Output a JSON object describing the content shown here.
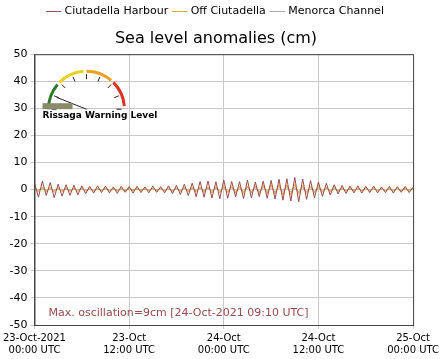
{
  "chart_data": {
    "type": "line",
    "title": "Sea level anomalies (cm)",
    "legend": "top",
    "grid": true,
    "x": [
      0,
      0.5,
      1,
      1.5,
      2,
      2.5,
      3,
      3.5,
      4,
      4.5,
      5,
      5.5,
      6,
      6.5,
      7,
      7.5,
      8,
      8.5,
      9,
      9.5,
      10,
      10.5,
      11,
      11.5,
      12,
      12.5,
      13,
      13.5,
      14,
      14.5,
      15,
      15.5,
      16,
      16.5,
      17,
      17.5,
      18,
      18.5,
      19,
      19.5,
      20,
      20.5,
      21,
      21.5,
      22,
      22.5,
      23,
      23.5,
      24,
      24.5,
      25,
      25.5,
      26,
      26.5,
      27,
      27.5,
      28,
      28.5,
      29,
      29.5,
      30,
      30.5,
      31,
      31.5,
      32,
      32.5,
      33,
      33.5,
      34,
      34.5,
      35,
      35.5,
      36,
      36.5,
      37,
      37.5,
      38,
      38.5,
      39,
      39.5,
      40,
      40.5,
      41,
      41.5,
      42,
      42.5,
      43,
      43.5,
      44,
      44.5,
      45,
      45.5,
      46,
      46.5,
      47,
      47.5,
      48
    ],
    "xlim": [
      0,
      48
    ],
    "xticks": [
      {
        "value": 0,
        "label": "23-Oct-2021 00:00 UTC"
      },
      {
        "value": 12,
        "label": "23-Oct 12:00 UTC"
      },
      {
        "value": 24,
        "label": "24-Oct 00:00 UTC"
      },
      {
        "value": 36,
        "label": "24-Oct 12:00 UTC"
      },
      {
        "value": 48,
        "label": "25-Oct 00:00 UTC"
      }
    ],
    "ylim": [
      -50,
      50
    ],
    "yticks": [
      -50,
      -40,
      -30,
      -20,
      -10,
      0,
      10,
      20,
      30,
      40,
      50
    ],
    "series": [
      {
        "name": "Ciutadella Harbour",
        "color": "#9a4a4a",
        "values": [
          2.5,
          -2.8,
          3.1,
          -2.2,
          2.6,
          -3.0,
          2.0,
          -2.4,
          1.8,
          -2.1,
          1.6,
          -1.9,
          1.4,
          -1.5,
          1.2,
          -1.3,
          1.4,
          -1.1,
          1.3,
          -1.2,
          1.0,
          -1.4,
          1.2,
          -1.0,
          1.1,
          -1.3,
          1.2,
          -1.1,
          1.0,
          -1.2,
          1.3,
          -1.0,
          1.1,
          -1.2,
          1.4,
          -1.5,
          1.6,
          -1.8,
          2.0,
          -2.2,
          2.4,
          -2.6,
          3.0,
          -2.8,
          3.2,
          -3.1,
          2.9,
          -3.4,
          3.6,
          -3.2,
          3.0,
          -2.7,
          2.9,
          -3.3,
          3.5,
          -3.0,
          2.8,
          -2.6,
          3.1,
          -3.2,
          3.4,
          -3.5,
          3.8,
          -3.9,
          4.0,
          -4.2,
          4.5,
          -4.5,
          3.9,
          -3.6,
          3.3,
          -3.0,
          2.8,
          -2.5,
          2.3,
          -2.0,
          1.8,
          -1.6,
          1.5,
          -1.4,
          1.3,
          -1.2,
          1.4,
          -1.3,
          1.2,
          -1.1,
          1.3,
          -1.2,
          1.0,
          -1.1,
          1.2,
          -1.3,
          1.1,
          -1.0,
          1.2,
          -1.1,
          0.9
        ]
      },
      {
        "name": "Off Ciutadella",
        "color": "#f0a830",
        "values": [
          0.8,
          -0.9,
          1.0,
          -0.8,
          0.9,
          -1.0,
          0.7,
          -0.8,
          0.6,
          -0.7,
          0.5,
          -0.6,
          0.5,
          -0.5,
          0.4,
          -0.5,
          0.4,
          -0.4,
          0.5,
          -0.4,
          0.4,
          -0.5,
          0.4,
          -0.4,
          0.5,
          -0.4,
          0.3,
          -0.4,
          0.4,
          -0.3,
          0.4,
          -0.4,
          0.5,
          -0.5,
          0.6,
          -0.6,
          0.7,
          -0.7,
          0.8,
          -0.8,
          0.9,
          -1.0,
          1.0,
          -1.1,
          1.0,
          -1.2,
          1.1,
          -1.2,
          1.3,
          -1.1,
          1.2,
          -1.3,
          1.2,
          -1.4,
          1.3,
          -1.2,
          1.4,
          -1.5,
          1.6,
          -1.5,
          1.7,
          -1.6,
          1.8,
          -1.9,
          1.7,
          -1.8,
          1.9,
          -1.6,
          1.5,
          -1.4,
          1.3,
          -1.2,
          1.1,
          -1.0,
          0.9,
          -0.8,
          0.8,
          -0.7,
          0.7,
          -0.6,
          0.6,
          -0.5,
          0.6,
          -0.5,
          0.5,
          -0.6,
          0.5,
          -0.4,
          0.5,
          -0.4,
          0.4,
          -0.5,
          0.4,
          -0.4,
          0.5,
          -0.4,
          0.4
        ]
      },
      {
        "name": "Menorca Channel",
        "color": "#a8a8a8",
        "values": [
          0.3,
          -0.3,
          0.4,
          -0.3,
          0.3,
          -0.4,
          0.3,
          -0.3,
          0.2,
          -0.3,
          0.2,
          -0.2,
          0.3,
          -0.2,
          0.2,
          -0.3,
          0.2,
          -0.2,
          0.3,
          -0.2,
          0.2,
          -0.2,
          0.2,
          -0.3,
          0.2,
          -0.2,
          0.3,
          -0.2,
          0.2,
          -0.2,
          0.3,
          -0.3,
          0.3,
          -0.4,
          0.3,
          -0.4,
          0.4,
          -0.4,
          0.5,
          -0.4,
          0.5,
          -0.5,
          0.6,
          -0.5,
          0.6,
          -0.6,
          0.5,
          -0.6,
          0.7,
          -0.6,
          0.6,
          -0.7,
          0.6,
          -0.7,
          0.8,
          -0.7,
          0.7,
          -0.8,
          0.8,
          -0.7,
          0.8,
          -0.9,
          0.9,
          -0.8,
          0.9,
          -0.9,
          0.8,
          -0.8,
          0.7,
          -0.7,
          0.6,
          -0.6,
          0.5,
          -0.5,
          0.5,
          -0.4,
          0.4,
          -0.4,
          0.3,
          -0.4,
          0.3,
          -0.3,
          0.3,
          -0.3,
          0.4,
          -0.3,
          0.3,
          -0.3,
          0.2,
          -0.3,
          0.3,
          -0.2,
          0.3,
          -0.3,
          0.2,
          -0.2,
          0.3
        ]
      }
    ],
    "annotations": [
      "Rissaga Warning Level",
      "Max. oscillation=9cm [24-Oct-2021 09:10 UTC]"
    ]
  }
}
